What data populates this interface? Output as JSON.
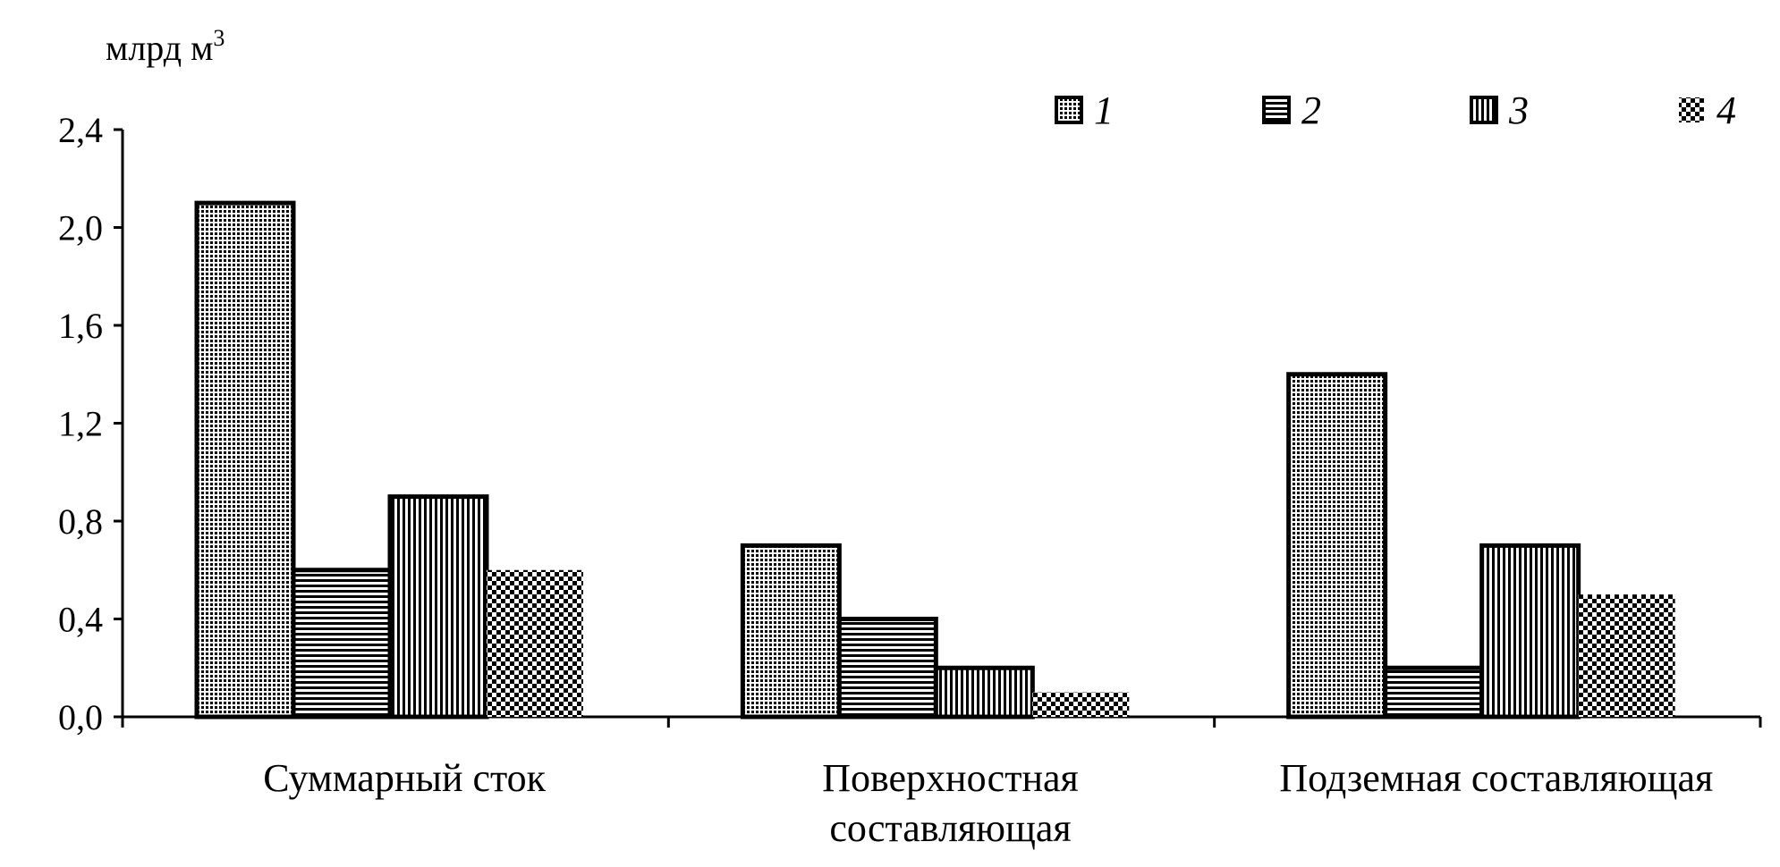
{
  "chart_data": {
    "type": "bar",
    "title": "",
    "xlabel": "",
    "ylabel": "млрд м",
    "ylabel_superscript": "3",
    "ylim": [
      0,
      2.4
    ],
    "yticks": [
      "0,0",
      "0,4",
      "0,8",
      "1,2",
      "1,6",
      "2,0",
      "2,4"
    ],
    "categories": [
      [
        "Суммарный сток"
      ],
      [
        "Поверхностная",
        "составляющая"
      ],
      [
        "Подземная составляющая"
      ]
    ],
    "series": [
      {
        "name": "1",
        "pattern": "dots",
        "values": [
          2.1,
          0.7,
          1.4
        ]
      },
      {
        "name": "2",
        "pattern": "horizontal-lines",
        "values": [
          0.6,
          0.4,
          0.2
        ]
      },
      {
        "name": "3",
        "pattern": "vertical-lines",
        "values": [
          0.9,
          0.2,
          0.7
        ]
      },
      {
        "name": "4",
        "pattern": "checkerboard",
        "values": [
          0.6,
          0.1,
          0.5
        ]
      }
    ],
    "grid": false,
    "legend_position": "top-right",
    "colors": {
      "ink": "#000000",
      "background": "#ffffff"
    }
  }
}
